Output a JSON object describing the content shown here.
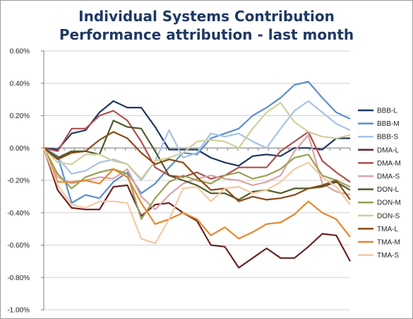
{
  "chart_data": {
    "type": "line",
    "title": "Individual Systems Contribution",
    "subtitle": "Performance attribution - last month",
    "xlabel": "",
    "ylabel": "",
    "ylim": [
      -1.0,
      0.6
    ],
    "yticks": [
      "0.60%",
      "0.40%",
      "0.20%",
      "0.00%",
      "-0.20%",
      "-0.40%",
      "-0.60%",
      "-0.80%",
      "-1.00%"
    ],
    "ytick_values": [
      0.6,
      0.4,
      0.2,
      0.0,
      -0.2,
      -0.4,
      -0.6,
      -0.8,
      -1.0
    ],
    "grid": true,
    "legend": "right",
    "x": [
      1,
      2,
      3,
      4,
      5,
      6,
      7,
      8,
      9,
      10,
      11,
      12,
      13,
      14,
      15,
      16,
      17,
      18,
      19,
      20,
      21,
      22,
      23,
      24,
      25,
      26,
      27,
      28,
      29,
      30,
      31
    ],
    "series": [
      {
        "name": "BBB-L",
        "color": "#1f3864",
        "values": [
          0.0,
          -0.01,
          0.09,
          0.11,
          0.22,
          0.29,
          0.25,
          0.25,
          0.13,
          -0.01,
          -0.01,
          -0.01,
          -0.06,
          -0.09,
          -0.11,
          -0.05,
          -0.04,
          -0.05,
          0.0,
          0.0,
          -0.01,
          0.06,
          0.06,
          0.03,
          0.02,
          0.02,
          0.02,
          0.02,
          0.02,
          0.02,
          0.02
        ]
      },
      {
        "name": "BBB-M",
        "color": "#5b8fd0",
        "values": [
          0.0,
          -0.05,
          -0.34,
          -0.29,
          -0.31,
          -0.21,
          -0.15,
          -0.28,
          -0.22,
          -0.12,
          -0.03,
          -0.04,
          0.06,
          0.09,
          0.12,
          0.2,
          0.25,
          0.31,
          0.39,
          0.41,
          0.31,
          0.22,
          0.18,
          0.15,
          0.15,
          0.15,
          0.15,
          0.15,
          0.15,
          0.15,
          0.15
        ]
      },
      {
        "name": "BBB-S",
        "color": "#a7c2e6",
        "values": [
          0.0,
          -0.06,
          -0.16,
          -0.14,
          -0.09,
          -0.07,
          -0.1,
          -0.2,
          -0.08,
          0.11,
          -0.06,
          -0.03,
          0.09,
          0.07,
          0.09,
          0.04,
          0.0,
          0.12,
          0.23,
          0.29,
          0.22,
          0.15,
          0.11,
          0.1,
          0.1,
          0.1,
          0.1,
          0.1,
          0.1,
          0.1,
          0.1
        ]
      },
      {
        "name": "DMA-L",
        "color": "#6b2222",
        "values": [
          0.0,
          -0.26,
          -0.37,
          -0.38,
          -0.38,
          -0.24,
          -0.23,
          -0.42,
          -0.35,
          -0.34,
          -0.4,
          -0.45,
          -0.6,
          -0.61,
          -0.74,
          -0.68,
          -0.62,
          -0.68,
          -0.68,
          -0.61,
          -0.53,
          -0.54,
          -0.7,
          -0.7,
          -0.7,
          -0.7,
          -0.7,
          -0.7,
          -0.7,
          -0.7,
          -0.7
        ]
      },
      {
        "name": "DMA-M",
        "color": "#b14f4f",
        "values": [
          0.0,
          -0.02,
          0.12,
          0.12,
          0.2,
          0.23,
          0.17,
          0.04,
          -0.12,
          -0.17,
          -0.18,
          -0.15,
          -0.19,
          -0.17,
          -0.12,
          -0.12,
          -0.12,
          -0.02,
          0.04,
          0.1,
          -0.08,
          -0.15,
          -0.21,
          -0.21,
          -0.21,
          -0.21,
          -0.21,
          -0.21,
          -0.21,
          -0.21,
          -0.21
        ]
      },
      {
        "name": "DMA-S",
        "color": "#dba3a3",
        "values": [
          0.0,
          -0.18,
          -0.22,
          -0.2,
          -0.18,
          -0.19,
          -0.13,
          -0.3,
          -0.38,
          -0.29,
          -0.22,
          -0.19,
          -0.17,
          -0.19,
          -0.2,
          -0.23,
          -0.21,
          -0.17,
          -0.02,
          0.08,
          -0.22,
          -0.27,
          -0.29,
          -0.29,
          -0.29,
          -0.29,
          -0.29,
          -0.29,
          -0.29,
          -0.29,
          -0.29
        ]
      },
      {
        "name": "DON-L",
        "color": "#4f5a2a",
        "values": [
          0.0,
          -0.06,
          -0.02,
          -0.02,
          -0.04,
          0.17,
          0.13,
          0.12,
          -0.02,
          -0.17,
          -0.2,
          -0.23,
          -0.28,
          -0.28,
          -0.32,
          -0.27,
          -0.26,
          -0.28,
          -0.25,
          -0.25,
          -0.24,
          -0.21,
          -0.26,
          -0.26,
          -0.26,
          -0.26,
          -0.26,
          -0.26,
          -0.26,
          -0.26,
          -0.26
        ]
      },
      {
        "name": "DON-M",
        "color": "#9aa055",
        "values": [
          0.0,
          -0.16,
          -0.25,
          -0.18,
          -0.15,
          -0.13,
          -0.16,
          -0.44,
          -0.31,
          -0.21,
          -0.17,
          -0.2,
          -0.22,
          -0.17,
          -0.15,
          -0.19,
          -0.17,
          -0.13,
          -0.06,
          -0.04,
          -0.17,
          -0.2,
          -0.24,
          -0.24,
          -0.24,
          -0.24,
          -0.24,
          -0.24,
          -0.24,
          -0.24,
          -0.24
        ]
      },
      {
        "name": "DON-S",
        "color": "#cfd09c",
        "values": [
          0.0,
          -0.09,
          -0.1,
          -0.04,
          -0.04,
          -0.08,
          -0.1,
          -0.19,
          -0.08,
          -0.06,
          -0.03,
          0.04,
          0.05,
          0.04,
          0.0,
          0.12,
          0.22,
          0.28,
          0.16,
          0.1,
          0.07,
          0.06,
          0.08,
          0.08,
          0.08,
          0.08,
          0.08,
          0.08,
          0.08,
          0.08,
          0.08
        ]
      },
      {
        "name": "TMA-L",
        "color": "#8a4a14",
        "values": [
          0.0,
          -0.07,
          -0.03,
          -0.02,
          0.05,
          0.1,
          0.06,
          -0.03,
          -0.1,
          -0.07,
          -0.09,
          -0.18,
          -0.26,
          -0.25,
          -0.33,
          -0.3,
          -0.32,
          -0.31,
          -0.29,
          -0.25,
          -0.23,
          -0.2,
          -0.32,
          -0.32,
          -0.32,
          -0.32,
          -0.32,
          -0.32,
          -0.32,
          -0.32,
          -0.32
        ]
      },
      {
        "name": "TMA-M",
        "color": "#e8872b",
        "values": [
          0.0,
          -0.21,
          -0.21,
          -0.2,
          -0.22,
          -0.13,
          -0.18,
          -0.34,
          -0.47,
          -0.44,
          -0.4,
          -0.44,
          -0.54,
          -0.49,
          -0.56,
          -0.52,
          -0.47,
          -0.46,
          -0.41,
          -0.33,
          -0.4,
          -0.44,
          -0.55,
          -0.55,
          -0.55,
          -0.55,
          -0.55,
          -0.55,
          -0.55,
          -0.55,
          -0.55
        ]
      },
      {
        "name": "TMA-S",
        "color": "#f4c9a2",
        "values": [
          0.0,
          -0.23,
          -0.35,
          -0.37,
          -0.33,
          -0.33,
          -0.34,
          -0.56,
          -0.59,
          -0.44,
          -0.25,
          -0.24,
          -0.33,
          -0.25,
          -0.24,
          -0.28,
          -0.26,
          -0.21,
          -0.13,
          -0.09,
          -0.18,
          -0.24,
          -0.35,
          -0.35,
          -0.35,
          -0.35,
          -0.35,
          -0.35,
          -0.35,
          -0.35,
          -0.35
        ]
      }
    ]
  }
}
